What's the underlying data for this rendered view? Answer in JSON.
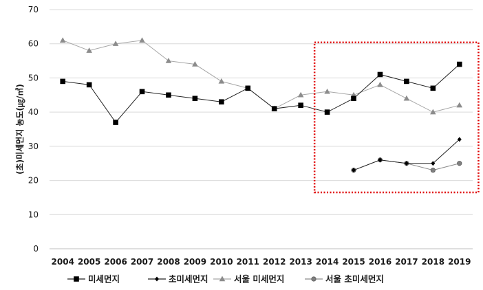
{
  "chart_data": {
    "type": "line",
    "ylabel": "(초)미세먼지 농도(㎍/㎥)",
    "ylim": [
      0,
      70
    ],
    "yticks": [
      "0",
      "10",
      "20",
      "30",
      "40",
      "50",
      "60",
      "70"
    ],
    "categories": [
      "2004",
      "2005",
      "2006",
      "2007",
      "2008",
      "2009",
      "2010",
      "2011",
      "2012",
      "2013",
      "2014",
      "2015",
      "2016",
      "2017",
      "2018",
      "2019"
    ],
    "grid": true,
    "legend_position": "bottom",
    "highlight_box": {
      "from": "2014",
      "to": "2019",
      "style": "red dotted"
    },
    "series": [
      {
        "name": "미세먼지",
        "color": "#000000",
        "marker": "square",
        "line_color": "#222222",
        "values": [
          49,
          48,
          37,
          46,
          45,
          44,
          43,
          47,
          41,
          42,
          40,
          44,
          51,
          49,
          47,
          54
        ]
      },
      {
        "name": "초미세먼지",
        "color": "#000000",
        "marker": "diamond",
        "line_color": "#222222",
        "values": [
          null,
          null,
          null,
          null,
          null,
          null,
          null,
          null,
          null,
          null,
          null,
          23,
          26,
          25,
          25,
          32
        ]
      },
      {
        "name": "서울 미세먼지",
        "color": "#8c8c8c",
        "marker": "triangle",
        "line_color": "#a6a6a6",
        "values": [
          61,
          58,
          60,
          61,
          55,
          54,
          49,
          47,
          41,
          45,
          46,
          45,
          48,
          44,
          40,
          42
        ]
      },
      {
        "name": "서울 초미세먼지",
        "color": "#808080",
        "marker": "circle",
        "line_color": "#8c8c8c",
        "values": [
          null,
          null,
          null,
          null,
          null,
          null,
          null,
          null,
          null,
          null,
          null,
          23,
          26,
          25,
          23,
          25
        ]
      }
    ]
  }
}
